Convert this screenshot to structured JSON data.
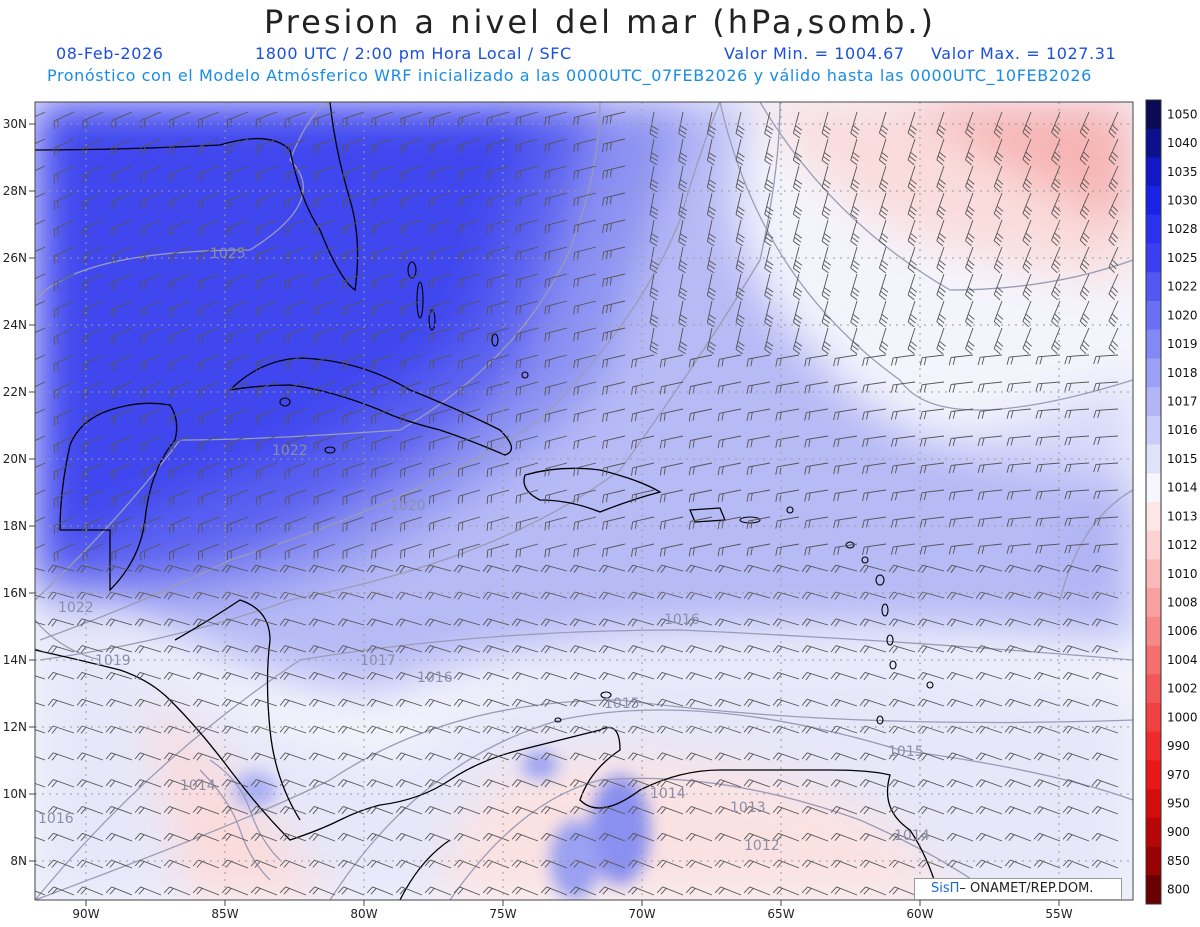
{
  "title": "Presion a nivel del mar (hPa,somb.)",
  "header": {
    "date": "08-Feb-2026",
    "time": "1800 UTC / 2:00 pm Hora Local / SFC",
    "min": "Valor Min. = 1004.67",
    "max": "Valor Max. = 1027.31",
    "forecast": "Pronóstico con el Modelo Atmósferico WRF inicializado a las 0000UTC_07FEB2026 y válido hasta las  0000UTC_10FEB2026"
  },
  "axes": {
    "lat_labels": [
      "30N",
      "28N",
      "26N",
      "24N",
      "22N",
      "20N",
      "18N",
      "16N",
      "14N",
      "12N",
      "10N",
      "8N"
    ],
    "lon_labels": [
      "90W",
      "85W",
      "80W",
      "75W",
      "70W",
      "65W",
      "60W",
      "55W"
    ]
  },
  "colorbar": {
    "levels": [
      "1050",
      "1040",
      "1035",
      "1030",
      "1028",
      "1025",
      "1022",
      "1020",
      "1019",
      "1018",
      "1017",
      "1016",
      "1015",
      "1014",
      "1013",
      "1012",
      "1010",
      "1008",
      "1006",
      "1004",
      "1002",
      "1000",
      "990",
      "970",
      "950",
      "900",
      "850",
      "800"
    ],
    "colors": [
      "#0a0a55",
      "#0b108c",
      "#1018c8",
      "#1a22e8",
      "#2a32f0",
      "#3a40f2",
      "#5258f4",
      "#6a70f4",
      "#8288f4",
      "#9aa0f5",
      "#b2b6f6",
      "#cacdf8",
      "#e0e2fa",
      "#f6f6fd",
      "#fde6e6",
      "#fcd2d2",
      "#fab8b8",
      "#f8a0a0",
      "#f68888",
      "#f47070",
      "#f25858",
      "#f04040",
      "#ee2a2a",
      "#e81818",
      "#d40c0c",
      "#b80606",
      "#980202",
      "#6a0000"
    ]
  },
  "isobar_labels": [
    {
      "text": "1025"
    },
    {
      "text": "1022"
    },
    {
      "text": "1020"
    },
    {
      "text": "1022"
    },
    {
      "text": "1019"
    },
    {
      "text": "1017"
    },
    {
      "text": "1016"
    },
    {
      "text": "1016"
    },
    {
      "text": "1015"
    },
    {
      "text": "1015"
    },
    {
      "text": "1014"
    },
    {
      "text": "1014"
    },
    {
      "text": "1013"
    },
    {
      "text": "1012"
    },
    {
      "text": "1014"
    },
    {
      "text": "1016"
    }
  ],
  "credit": {
    "brand": "SisΠ",
    "text": "– ONAMET/REP.DOM."
  }
}
